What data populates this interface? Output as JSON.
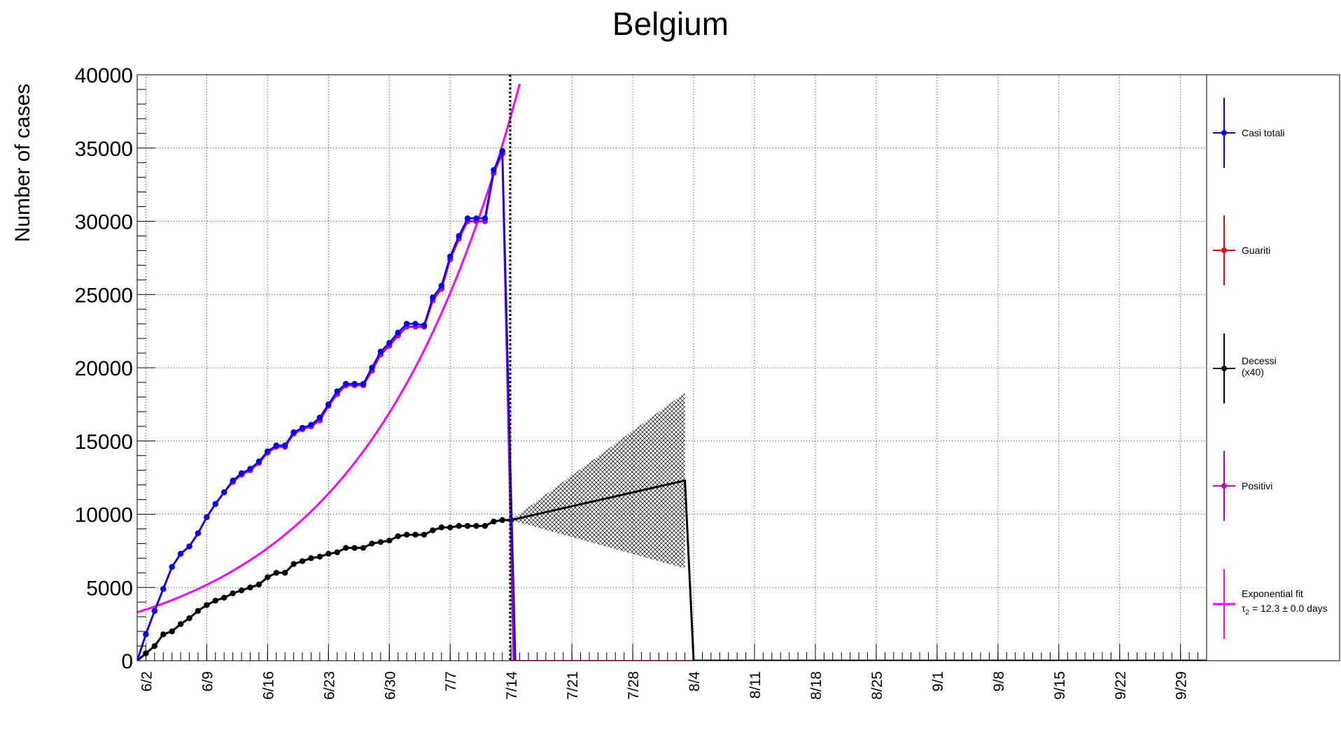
{
  "chart_data": {
    "type": "line",
    "title": "Belgium",
    "ylabel": "Number of cases",
    "xlabel": "",
    "ylim": [
      0,
      40000
    ],
    "xlim_days": [
      0,
      123
    ],
    "grid": true,
    "legend_position": "right",
    "x_tick_labels": [
      "6/2",
      "6/9",
      "6/16",
      "6/23",
      "6/30",
      "7/7",
      "7/14",
      "7/21",
      "7/28",
      "8/4",
      "8/11",
      "8/18",
      "8/25",
      "9/1",
      "9/8",
      "9/15",
      "9/22",
      "9/29"
    ],
    "x_tick_days": [
      1,
      8,
      15,
      22,
      29,
      36,
      43,
      50,
      57,
      64,
      71,
      78,
      85,
      92,
      99,
      106,
      113,
      120
    ],
    "y_tick_labels": [
      "0",
      "5000",
      "10000",
      "15000",
      "20000",
      "25000",
      "30000",
      "35000",
      "40000"
    ],
    "y_tick_values": [
      0,
      5000,
      10000,
      15000,
      20000,
      25000,
      30000,
      35000,
      40000
    ],
    "series": [
      {
        "name": "Casi totali",
        "color": "#0000ff",
        "x": [
          0,
          1,
          2,
          3,
          4,
          5,
          6,
          7,
          8,
          9,
          10,
          11,
          12,
          13,
          14,
          15,
          16,
          17,
          18,
          19,
          20,
          21,
          22,
          23,
          24,
          25,
          26,
          27,
          28,
          29,
          30,
          31,
          32,
          33,
          34,
          35,
          36,
          37,
          38,
          39,
          40,
          41,
          42
        ],
        "values": [
          0,
          1800,
          3400,
          4900,
          6400,
          7300,
          7800,
          8700,
          9800,
          10700,
          11500,
          12300,
          12800,
          13100,
          13600,
          14300,
          14700,
          14700,
          15600,
          15900,
          16100,
          16600,
          17500,
          18400,
          18900,
          18900,
          18900,
          20000,
          21100,
          21700,
          22400,
          23000,
          23000,
          22900,
          24800,
          25600,
          27600,
          29000,
          30200,
          30200,
          30200,
          33500,
          34800
        ],
        "drop_to_zero_day": 43.5
      },
      {
        "name": "Guariti",
        "color": "#ff0000",
        "x": [
          43,
          64
        ],
        "values": [
          0,
          0
        ]
      },
      {
        "name": "Decessi\n(x40)",
        "color": "#000000",
        "x": [
          0,
          1,
          2,
          3,
          4,
          5,
          6,
          7,
          8,
          9,
          10,
          11,
          12,
          13,
          14,
          15,
          16,
          17,
          18,
          19,
          20,
          21,
          22,
          23,
          24,
          25,
          26,
          27,
          28,
          29,
          30,
          31,
          32,
          33,
          34,
          35,
          36,
          37,
          38,
          39,
          40,
          41,
          42,
          43
        ],
        "values": [
          0,
          500,
          1000,
          1800,
          2000,
          2500,
          2900,
          3400,
          3800,
          4100,
          4300,
          4600,
          4800,
          5000,
          5200,
          5700,
          6000,
          6000,
          6600,
          6800,
          7000,
          7100,
          7300,
          7400,
          7700,
          7700,
          7700,
          8000,
          8100,
          8200,
          8500,
          8600,
          8600,
          8600,
          8900,
          9100,
          9100,
          9200,
          9200,
          9200,
          9200,
          9500,
          9600,
          9600
        ],
        "projection": {
          "x": [
            43,
            63,
            64,
            123
          ],
          "values": [
            9600,
            12300,
            0,
            0
          ]
        },
        "uncertainty_band": {
          "x": [
            43,
            63
          ],
          "lower": [
            9600,
            6300
          ],
          "upper": [
            9600,
            18300
          ]
        }
      },
      {
        "name": "Positivi",
        "color": "#c000c0",
        "x": [
          0,
          1,
          2,
          3,
          4,
          5,
          6,
          7,
          8,
          9,
          10,
          11,
          12,
          13,
          14,
          15,
          16,
          17,
          18,
          19,
          20,
          21,
          22,
          23,
          24,
          25,
          26,
          27,
          28,
          29,
          30,
          31,
          32,
          33,
          34,
          35,
          36,
          37,
          38,
          39,
          40,
          41,
          42
        ],
        "values": [
          0,
          1800,
          3400,
          4900,
          6400,
          7300,
          7800,
          8700,
          9800,
          10700,
          11500,
          12200,
          12700,
          13000,
          13500,
          14200,
          14600,
          14600,
          15500,
          15800,
          16000,
          16400,
          17400,
          18200,
          18800,
          18800,
          18800,
          19800,
          20900,
          21500,
          22200,
          22800,
          22800,
          22800,
          24600,
          25400,
          27400,
          28800,
          30000,
          30000,
          30000,
          33300,
          34600
        ],
        "drop_to_zero_day": 43.3
      },
      {
        "name": "Exponential fit",
        "name_line2": "τ",
        "name_sub": "2",
        "name_rest": " = 12.3  ± 0.0 days",
        "color": "#ff00ff",
        "model": {
          "a": 3300,
          "doubling_days": 12.3,
          "x_start": 0,
          "x_end": 44.2
        }
      }
    ],
    "vertical_marker_day": 42.9
  }
}
